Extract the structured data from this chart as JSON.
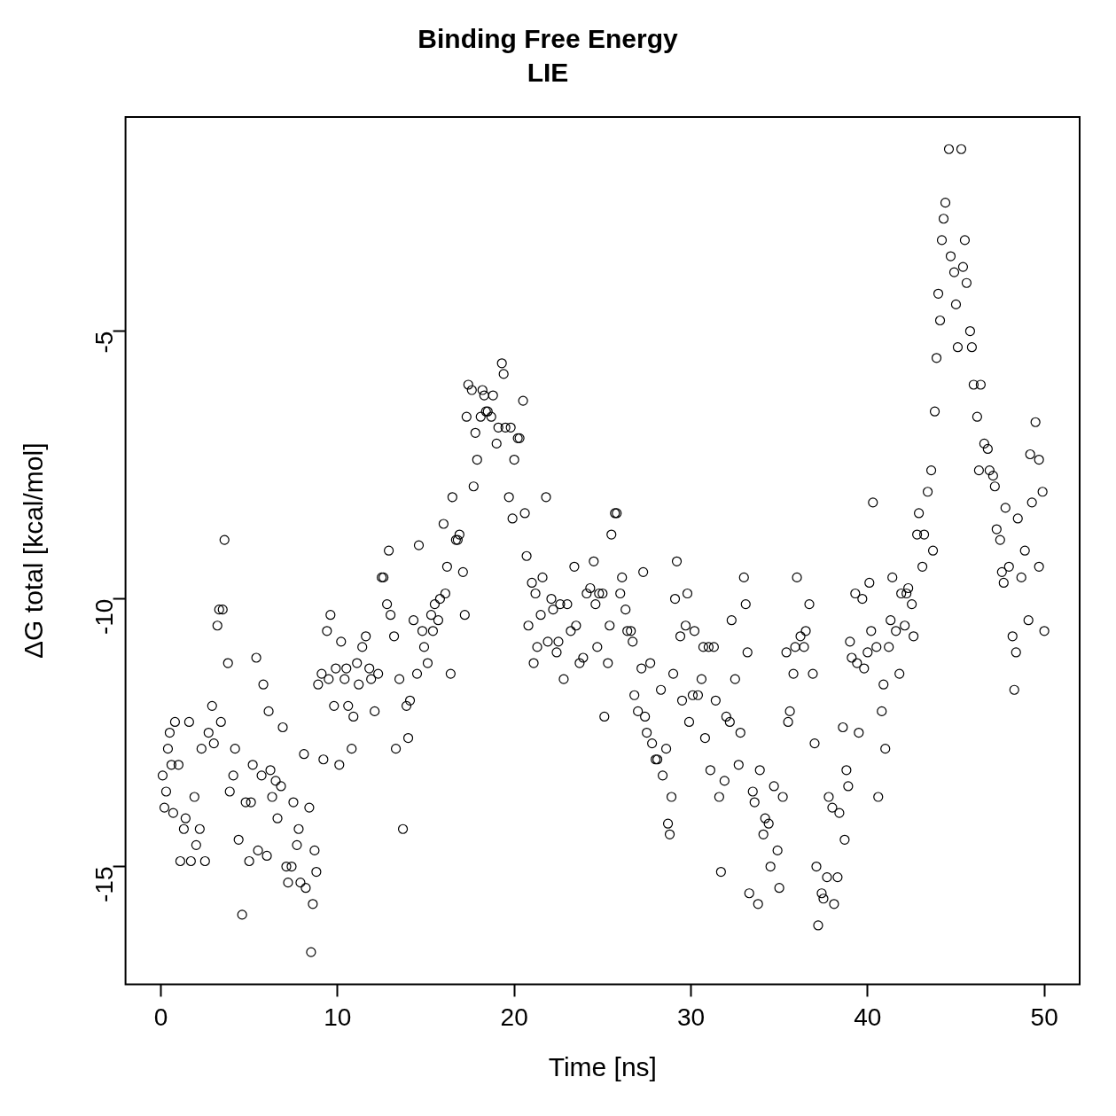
{
  "chart_data": {
    "type": "scatter",
    "title": "Binding Free Energy",
    "subtitle": "LIE",
    "xlabel": "Time [ns]",
    "ylabel": "ΔG total [kcal/mol]",
    "xlim": [
      -2,
      52
    ],
    "xticks": [
      0,
      10,
      20,
      30,
      40,
      50
    ],
    "ylim": [
      -17.2,
      -1.0
    ],
    "yticks": [
      -15,
      -10,
      -5
    ],
    "grid": false,
    "legend": false,
    "marker": "circle",
    "series": [
      {
        "color": "#000000",
        "x": [
          0.1,
          0.2,
          0.3,
          0.4,
          0.5,
          0.6,
          0.7,
          0.8,
          1.0,
          1.1,
          1.3,
          1.4,
          1.6,
          1.7,
          1.9,
          2.0,
          2.2,
          2.3,
          2.5,
          2.7,
          2.9,
          3.0,
          3.2,
          3.3,
          3.5,
          3.4,
          3.6,
          3.8,
          3.9,
          4.1,
          4.2,
          4.4,
          4.6,
          4.8,
          5.0,
          5.1,
          5.2,
          5.4,
          5.5,
          5.7,
          5.8,
          6.0,
          6.1,
          6.2,
          6.3,
          6.5,
          6.6,
          6.8,
          6.9,
          7.1,
          7.2,
          7.4,
          7.5,
          7.7,
          7.8,
          7.9,
          8.1,
          8.2,
          8.4,
          8.5,
          8.6,
          8.7,
          8.8,
          8.9,
          9.1,
          9.2,
          9.4,
          9.5,
          9.6,
          9.8,
          9.9,
          10.1,
          10.2,
          10.4,
          10.5,
          10.6,
          10.8,
          10.9,
          11.1,
          11.2,
          11.4,
          11.6,
          11.8,
          11.9,
          12.1,
          12.3,
          12.5,
          12.6,
          12.8,
          12.9,
          13.0,
          13.2,
          13.3,
          13.5,
          13.7,
          13.9,
          14.0,
          14.1,
          14.3,
          14.5,
          14.6,
          14.8,
          14.9,
          15.1,
          15.3,
          15.4,
          15.5,
          15.7,
          15.8,
          16.0,
          16.1,
          16.2,
          16.4,
          16.5,
          16.7,
          16.8,
          16.9,
          17.1,
          17.2,
          17.3,
          17.4,
          17.6,
          17.7,
          17.8,
          17.9,
          18.1,
          18.2,
          18.3,
          18.4,
          18.5,
          18.7,
          18.8,
          19.0,
          19.1,
          19.3,
          19.4,
          19.5,
          19.7,
          19.8,
          19.9,
          20.0,
          20.2,
          20.3,
          20.5,
          20.6,
          20.7,
          20.8,
          21.0,
          21.1,
          21.2,
          21.3,
          21.5,
          21.6,
          21.8,
          21.9,
          22.1,
          22.2,
          22.4,
          22.5,
          22.6,
          22.8,
          23.0,
          23.2,
          23.4,
          23.5,
          23.7,
          23.9,
          24.1,
          24.3,
          24.5,
          24.6,
          24.7,
          24.8,
          25.0,
          25.1,
          25.3,
          25.4,
          25.5,
          25.7,
          25.8,
          26.0,
          26.1,
          26.3,
          26.4,
          26.6,
          26.7,
          26.8,
          27.0,
          27.2,
          27.3,
          27.4,
          27.5,
          27.7,
          27.8,
          28.0,
          28.1,
          28.3,
          28.4,
          28.6,
          28.7,
          28.8,
          28.9,
          29.0,
          29.1,
          29.2,
          29.4,
          29.5,
          29.7,
          29.8,
          29.9,
          30.1,
          30.2,
          30.4,
          30.6,
          30.7,
          30.8,
          31.0,
          31.1,
          31.3,
          31.4,
          31.6,
          31.7,
          31.9,
          32.0,
          32.2,
          32.3,
          32.5,
          32.7,
          32.8,
          33.0,
          33.1,
          33.2,
          33.3,
          33.5,
          33.6,
          33.8,
          33.9,
          34.1,
          34.2,
          34.4,
          34.5,
          34.7,
          34.9,
          35.0,
          35.2,
          35.4,
          35.5,
          35.6,
          35.8,
          35.9,
          36.0,
          36.2,
          36.4,
          36.5,
          36.7,
          36.9,
          37.0,
          37.1,
          37.2,
          37.4,
          37.5,
          37.7,
          37.8,
          38.0,
          38.1,
          38.3,
          38.4,
          38.6,
          38.7,
          38.8,
          38.9,
          39.0,
          39.1,
          39.3,
          39.4,
          39.5,
          39.7,
          39.8,
          40.0,
          40.1,
          40.2,
          40.3,
          40.5,
          40.6,
          40.8,
          40.9,
          41.0,
          41.2,
          41.3,
          41.4,
          41.6,
          41.8,
          41.9,
          42.1,
          42.2,
          42.3,
          42.5,
          42.6,
          42.8,
          42.9,
          43.1,
          43.2,
          43.4,
          43.6,
          43.7,
          43.8,
          43.9,
          44.0,
          44.1,
          44.2,
          44.3,
          44.4,
          44.6,
          44.7,
          44.9,
          45.0,
          45.1,
          45.3,
          45.4,
          45.5,
          45.6,
          45.8,
          45.9,
          46.0,
          46.2,
          46.3,
          46.4,
          46.6,
          46.8,
          46.9,
          47.1,
          47.2,
          47.3,
          47.5,
          47.6,
          47.7,
          47.8,
          48.0,
          48.2,
          48.3,
          48.4,
          48.5,
          48.7,
          48.9,
          49.1,
          49.2,
          49.3,
          49.5,
          49.7,
          49.7,
          49.9,
          50.0
        ],
        "values": [
          -13.3,
          -13.9,
          -13.6,
          -12.8,
          -12.5,
          -13.1,
          -14.0,
          -12.3,
          -13.1,
          -14.9,
          -14.3,
          -14.1,
          -12.3,
          -14.9,
          -13.7,
          -14.6,
          -14.3,
          -12.8,
          -14.9,
          -12.5,
          -12.0,
          -12.7,
          -10.5,
          -10.2,
          -10.2,
          -12.3,
          -8.9,
          -11.2,
          -13.6,
          -13.3,
          -12.8,
          -14.5,
          -15.9,
          -13.8,
          -14.9,
          -13.8,
          -13.1,
          -11.1,
          -14.7,
          -13.3,
          -11.6,
          -14.8,
          -12.1,
          -13.2,
          -13.7,
          -13.4,
          -14.1,
          -13.5,
          -12.4,
          -15.0,
          -15.3,
          -15.0,
          -13.8,
          -14.6,
          -14.3,
          -15.3,
          -12.9,
          -15.4,
          -13.9,
          -16.6,
          -15.7,
          -14.7,
          -15.1,
          -11.6,
          -11.4,
          -13.0,
          -10.6,
          -11.5,
          -10.3,
          -12.0,
          -11.3,
          -13.1,
          -10.8,
          -11.5,
          -11.3,
          -12.0,
          -12.8,
          -12.2,
          -11.2,
          -11.6,
          -10.9,
          -10.7,
          -11.3,
          -11.5,
          -12.1,
          -11.4,
          -9.6,
          -9.6,
          -10.1,
          -9.1,
          -10.3,
          -10.7,
          -12.8,
          -11.5,
          -14.3,
          -12.0,
          -12.6,
          -11.9,
          -10.4,
          -11.4,
          -9.0,
          -10.6,
          -10.9,
          -11.2,
          -10.3,
          -10.6,
          -10.1,
          -10.4,
          -10.0,
          -8.6,
          -9.9,
          -9.4,
          -11.4,
          -8.1,
          -8.9,
          -8.9,
          -8.8,
          -9.5,
          -10.3,
          -6.6,
          -6.0,
          -6.1,
          -7.9,
          -6.9,
          -7.4,
          -6.6,
          -6.1,
          -6.2,
          -6.5,
          -6.5,
          -6.6,
          -6.2,
          -7.1,
          -6.8,
          -5.6,
          -5.8,
          -6.8,
          -8.1,
          -6.8,
          -8.5,
          -7.4,
          -7.0,
          -7.0,
          -6.3,
          -8.4,
          -9.2,
          -10.5,
          -9.7,
          -11.2,
          -9.9,
          -10.9,
          -10.3,
          -9.6,
          -8.1,
          -10.8,
          -10.0,
          -10.2,
          -11.0,
          -10.8,
          -10.1,
          -11.5,
          -10.1,
          -10.6,
          -9.4,
          -10.5,
          -11.2,
          -11.1,
          -9.9,
          -9.8,
          -9.3,
          -10.1,
          -10.9,
          -9.9,
          -9.9,
          -12.2,
          -11.2,
          -10.5,
          -8.8,
          -8.4,
          -8.4,
          -9.9,
          -9.6,
          -10.2,
          -10.6,
          -10.6,
          -10.8,
          -11.8,
          -12.1,
          -11.3,
          -9.5,
          -12.2,
          -12.5,
          -11.2,
          -12.7,
          -13.0,
          -13.0,
          -11.7,
          -13.3,
          -12.8,
          -14.2,
          -14.4,
          -13.7,
          -11.4,
          -10.0,
          -9.3,
          -10.7,
          -11.9,
          -10.5,
          -9.9,
          -12.3,
          -11.8,
          -10.6,
          -11.8,
          -11.5,
          -10.9,
          -12.6,
          -10.9,
          -13.2,
          -10.9,
          -11.9,
          -13.7,
          -15.1,
          -13.4,
          -12.2,
          -12.3,
          -10.4,
          -11.5,
          -13.1,
          -12.5,
          -9.6,
          -10.1,
          -11.0,
          -15.5,
          -13.6,
          -13.8,
          -15.7,
          -13.2,
          -14.4,
          -14.1,
          -14.2,
          -15.0,
          -13.5,
          -14.7,
          -15.4,
          -13.7,
          -11.0,
          -12.3,
          -12.1,
          -11.4,
          -10.9,
          -9.6,
          -10.7,
          -10.9,
          -10.6,
          -10.1,
          -11.4,
          -12.7,
          -15.0,
          -16.1,
          -15.5,
          -15.6,
          -15.2,
          -13.7,
          -13.9,
          -15.7,
          -15.2,
          -14.0,
          -12.4,
          -14.5,
          -13.2,
          -13.5,
          -10.8,
          -11.1,
          -9.9,
          -11.2,
          -12.5,
          -10.0,
          -11.3,
          -11.0,
          -9.7,
          -10.6,
          -8.2,
          -10.9,
          -13.7,
          -12.1,
          -11.6,
          -12.8,
          -10.9,
          -10.4,
          -9.6,
          -10.6,
          -11.4,
          -9.9,
          -10.5,
          -9.9,
          -9.8,
          -10.1,
          -10.7,
          -8.8,
          -8.4,
          -9.4,
          -8.8,
          -8.0,
          -7.6,
          -9.1,
          -6.5,
          -5.5,
          -4.3,
          -4.8,
          -3.3,
          -2.9,
          -2.6,
          -1.6,
          -3.6,
          -3.9,
          -4.5,
          -5.3,
          -1.6,
          -3.8,
          -3.3,
          -4.1,
          -5.0,
          -5.3,
          -6.0,
          -6.6,
          -7.6,
          -6.0,
          -7.1,
          -7.2,
          -7.6,
          -7.7,
          -7.9,
          -8.7,
          -8.9,
          -9.5,
          -9.7,
          -8.3,
          -9.4,
          -10.7,
          -11.7,
          -11.0,
          -8.5,
          -9.6,
          -9.1,
          -10.4,
          -7.3,
          -8.2,
          -6.7,
          -7.4,
          -9.4,
          -8.0,
          -10.6
        ]
      }
    ]
  }
}
